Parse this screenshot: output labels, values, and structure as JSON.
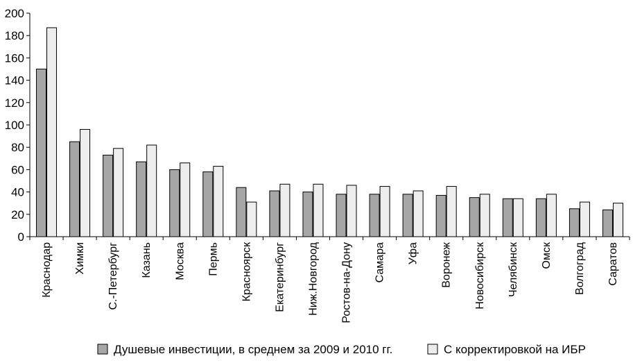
{
  "chart_data": {
    "type": "bar",
    "title": "",
    "xlabel": "",
    "ylabel": "",
    "ylim": [
      0,
      200
    ],
    "yticks": [
      "0",
      "20",
      "40",
      "60",
      "80",
      "100",
      "120",
      "140",
      "160",
      "180",
      "200"
    ],
    "grid": false,
    "legend_position": "bottom",
    "categories": [
      "Краснодар",
      "Химки",
      "С.-Петербург",
      "Казань",
      "Москва",
      "Пермь",
      "Красноярск",
      "Екатеринбург",
      "Ниж.Новгород",
      "Ростов-на-Дону",
      "Самара",
      "Уфа",
      "Воронеж",
      "Новосибирск",
      "Челябинск",
      "Омск",
      "Волгоград",
      "Саратов"
    ],
    "series": [
      {
        "name": "Душевые инвестиции, в среднем за 2009 и 2010 гг.",
        "color": "#a6a6a6",
        "values": [
          150,
          85,
          73,
          67,
          60,
          58,
          44,
          41,
          40,
          38,
          38,
          38,
          37,
          35,
          34,
          34,
          25,
          24
        ]
      },
      {
        "name": "С корректировкой на ИБР",
        "color": "#ededed",
        "values": [
          187,
          96,
          79,
          82,
          66,
          63,
          31,
          47,
          47,
          46,
          45,
          41,
          45,
          38,
          34,
          38,
          31,
          30
        ]
      }
    ]
  }
}
